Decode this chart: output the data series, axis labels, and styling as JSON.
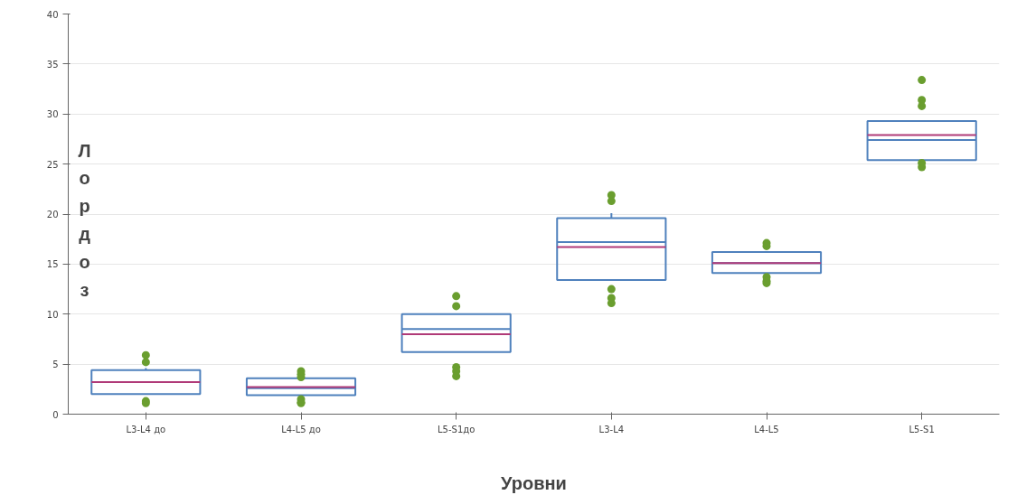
{
  "chart_data": {
    "type": "box",
    "xlabel": "Уровни",
    "ylabel": "Лордоз",
    "categories": [
      "L3-L4 до",
      "L4-L5 до",
      "L5-S1до",
      "L3-L4",
      "L4-L5",
      "L5-S1"
    ],
    "ylim": [
      0,
      40
    ],
    "yticks": [
      0,
      5,
      10,
      15,
      20,
      25,
      30,
      35,
      40
    ],
    "grid": "y",
    "series": [
      {
        "color": "#4f81bd",
        "boxes": [
          {
            "low": 2.0,
            "q1": 2.0,
            "median": 3.2,
            "q3": 4.4,
            "high": 4.6,
            "mean": 3.2,
            "outliers": [
              5.9,
              5.2,
              1.3,
              1.1
            ]
          },
          {
            "low": 1.9,
            "q1": 1.9,
            "median": 2.6,
            "q3": 3.6,
            "high": 3.6,
            "mean": 2.7,
            "outliers": [
              4.3,
              4.0,
              3.7,
              1.5,
              1.2,
              1.1
            ]
          },
          {
            "low": 6.2,
            "q1": 6.2,
            "median": 8.5,
            "q3": 10.0,
            "high": 10.0,
            "mean": 8.0,
            "outliers": [
              11.8,
              10.8,
              4.7,
              4.3,
              3.8
            ]
          },
          {
            "low": 13.4,
            "q1": 13.4,
            "median": 17.2,
            "q3": 19.6,
            "high": 20.1,
            "mean": 16.7,
            "outliers": [
              21.9,
              21.3,
              12.5,
              11.6,
              11.1
            ]
          },
          {
            "low": 14.1,
            "q1": 14.1,
            "median": 15.1,
            "q3": 16.2,
            "high": 16.2,
            "mean": 15.1,
            "outliers": [
              17.1,
              16.8,
              13.7,
              13.3,
              13.1
            ]
          },
          {
            "low": 25.4,
            "q1": 25.4,
            "median": 27.4,
            "q3": 29.3,
            "high": 29.3,
            "mean": 27.9,
            "outliers": [
              33.4,
              31.4,
              30.8,
              25.1,
              24.7
            ]
          }
        ]
      }
    ]
  }
}
